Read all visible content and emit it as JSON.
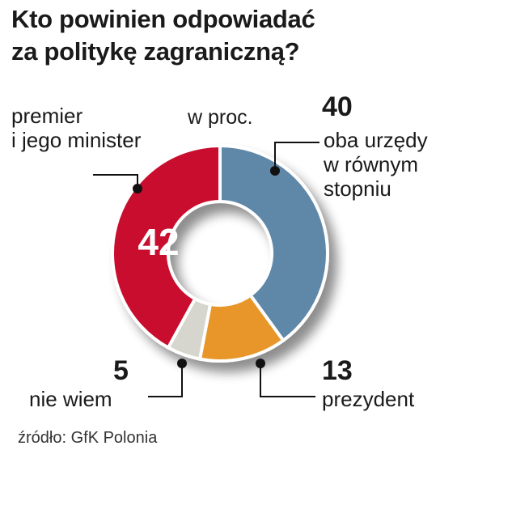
{
  "title": {
    "line1": "Kto powinien odpowiadać",
    "line2": "za politykę zagraniczną?"
  },
  "unit_label": "w proc.",
  "source": "źródło: GfK Polonia",
  "chart_data": {
    "type": "pie",
    "title": "Kto powinien odpowiadać za politykę zagraniczną?",
    "unit": "w proc.",
    "slices": [
      {
        "key": "oba",
        "value": 40,
        "color": "#5f87a8",
        "label": [
          "oba urzędy",
          "w równym",
          "stopniu"
        ]
      },
      {
        "key": "prezydent",
        "value": 13,
        "color": "#e8962a",
        "label": [
          "prezydent"
        ]
      },
      {
        "key": "niewiem",
        "value": 5,
        "color": "#d6d6cf",
        "label": [
          "nie wiem"
        ]
      },
      {
        "key": "premier",
        "value": 42,
        "color": "#c8102e",
        "label": [
          "premier",
          "i jego minister"
        ]
      }
    ]
  }
}
